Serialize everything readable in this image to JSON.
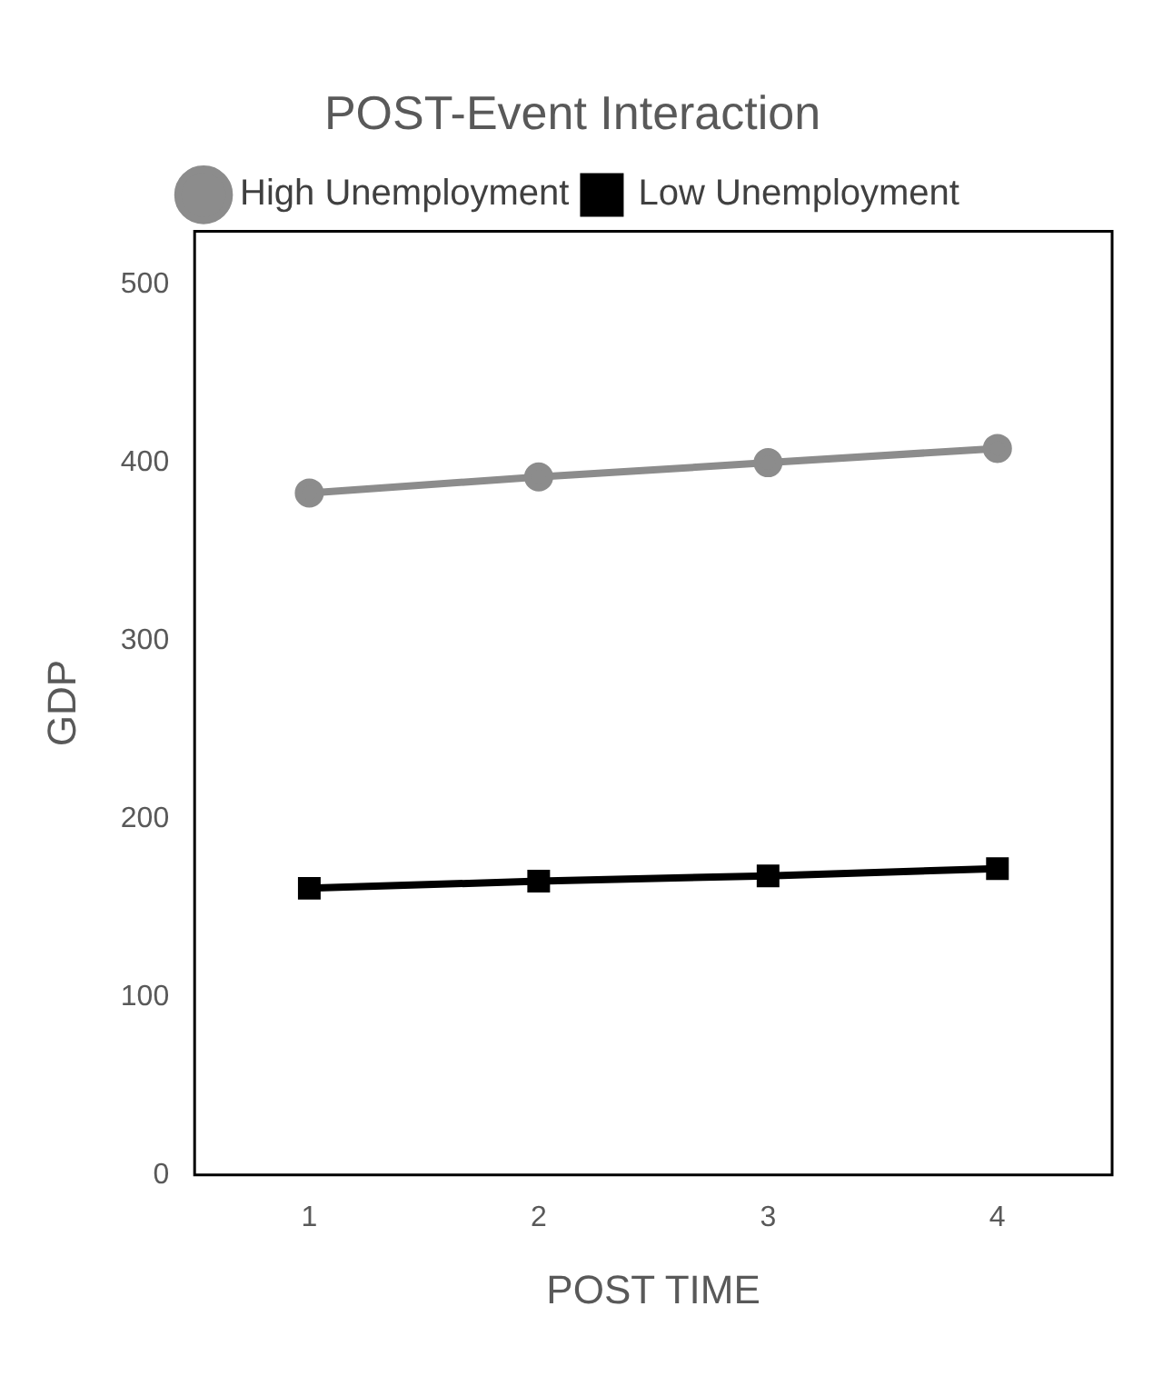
{
  "chart_data": {
    "type": "line",
    "title": "POST-Event Interaction",
    "xlabel": "POST TIME",
    "ylabel": "GDP",
    "categories": [
      "1",
      "2",
      "3",
      "4"
    ],
    "series": [
      {
        "name": "High Unemployment",
        "color": "#8c8c8c",
        "values": [
          383,
          392,
          400,
          408
        ],
        "marker": "circle"
      },
      {
        "name": "Low Unemployment",
        "color": "#000000",
        "values": [
          161,
          165,
          168,
          172
        ],
        "marker": "square"
      }
    ],
    "ylim": [
      0,
      530
    ],
    "yticks": [
      0,
      100,
      200,
      300,
      400,
      500
    ],
    "grid": false,
    "legend": "top",
    "line_style": "solid"
  }
}
